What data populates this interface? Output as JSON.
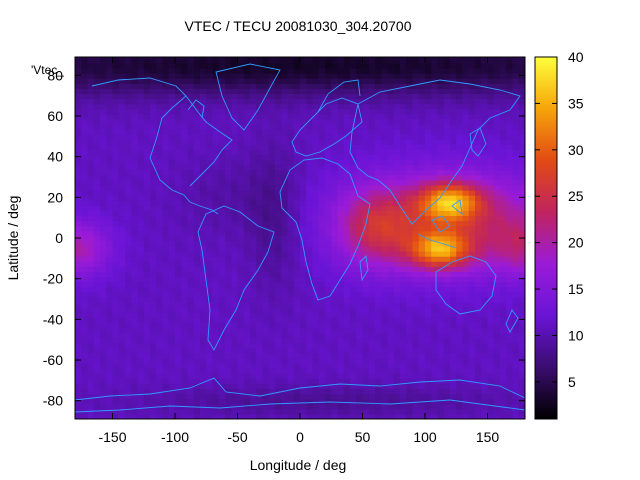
{
  "chart_data": {
    "type": "heatmap",
    "title": "VTEC / TECU 20081030_304.20700",
    "xlabel": "Longitude / deg",
    "ylabel": "Latitude / deg",
    "legend_key": "'Vtec_",
    "xlim": [
      -180,
      180
    ],
    "ylim": [
      -89,
      89
    ],
    "x_ticks": [
      -150,
      -100,
      -50,
      0,
      50,
      100,
      150
    ],
    "y_ticks": [
      -80,
      -60,
      -40,
      -20,
      0,
      20,
      40,
      60,
      80
    ],
    "colorbar": {
      "range": [
        1,
        40
      ],
      "ticks": [
        5,
        10,
        15,
        20,
        25,
        30,
        35,
        40
      ],
      "colors": [
        "#000000",
        "#3a0d6e",
        "#6a14d6",
        "#9a1bd8",
        "#c0245e",
        "#e24a15",
        "#f6a50a",
        "#ffff3a"
      ]
    },
    "field": {
      "background": 11,
      "features": [
        {
          "lon": 118,
          "lat": 8,
          "rlon": 80,
          "rlat": 24,
          "amp": 13
        },
        {
          "lon": 120,
          "lat": 18,
          "rlon": 24,
          "rlat": 9,
          "amp": 16
        },
        {
          "lon": 112,
          "lat": -6,
          "rlon": 24,
          "rlat": 9,
          "amp": 16
        },
        {
          "lon": 60,
          "lat": 5,
          "rlon": 28,
          "rlat": 18,
          "amp": 8
        },
        {
          "lon": -180,
          "lat": -5,
          "rlon": 28,
          "rlat": 14,
          "amp": 9
        },
        {
          "lon": 180,
          "lat": -5,
          "rlon": 24,
          "rlat": 14,
          "amp": 6
        },
        {
          "lon": -20,
          "lat": 10,
          "rlon": 22,
          "rlat": 35,
          "amp": -3
        },
        {
          "lon": -60,
          "lat": 20,
          "rlon": 40,
          "rlat": 20,
          "amp": -1.5
        },
        {
          "lon": 0,
          "lat": 85,
          "rlon": 400,
          "rlat": 15,
          "amp": -8
        },
        {
          "lon": 20,
          "lat": -80,
          "rlon": 150,
          "rlat": 8,
          "amp": -2.5
        }
      ]
    }
  }
}
